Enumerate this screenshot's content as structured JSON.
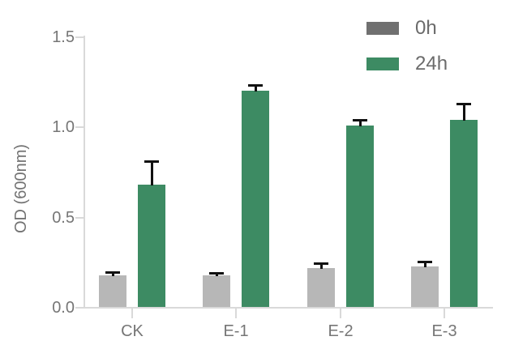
{
  "chart_data": {
    "type": "bar",
    "title": "",
    "xlabel": "",
    "ylabel": "OD (600nm)",
    "categories": [
      "CK",
      "E-1",
      "E-2",
      "E-3"
    ],
    "series": [
      {
        "name": "0h",
        "color": "#b7b7b7",
        "values": [
          0.18,
          0.18,
          0.22,
          0.23
        ],
        "errors": [
          0.015,
          0.01,
          0.025,
          0.025
        ]
      },
      {
        "name": "24h",
        "color": "#3d8b63",
        "values": [
          0.68,
          1.2,
          1.01,
          1.04
        ],
        "errors": [
          0.13,
          0.03,
          0.03,
          0.09
        ]
      }
    ],
    "yticks": [
      0,
      0.5,
      1.0,
      1.5
    ],
    "ytick_labels": [
      "0.0",
      "0.5",
      "1.0",
      "1.5"
    ],
    "ylim": [
      0,
      1.5
    ],
    "grid": false,
    "error_bars": true,
    "legend_position": "top-right"
  },
  "legend": {
    "item_0h_label": "0h",
    "item_24h_label": "24h"
  },
  "colors": {
    "bar_0h": "#b7b7b7",
    "bar_24h": "#3d8b63",
    "legend_0h_swatch": "#707070",
    "legend_24h_swatch": "#3d8b63",
    "axis_line": "#d9d9d9",
    "tick_label": "#767676",
    "axis_label": "#737373",
    "legend_text": "#6b6b6b",
    "error_bar": "#111111",
    "background": "#ffffff"
  }
}
